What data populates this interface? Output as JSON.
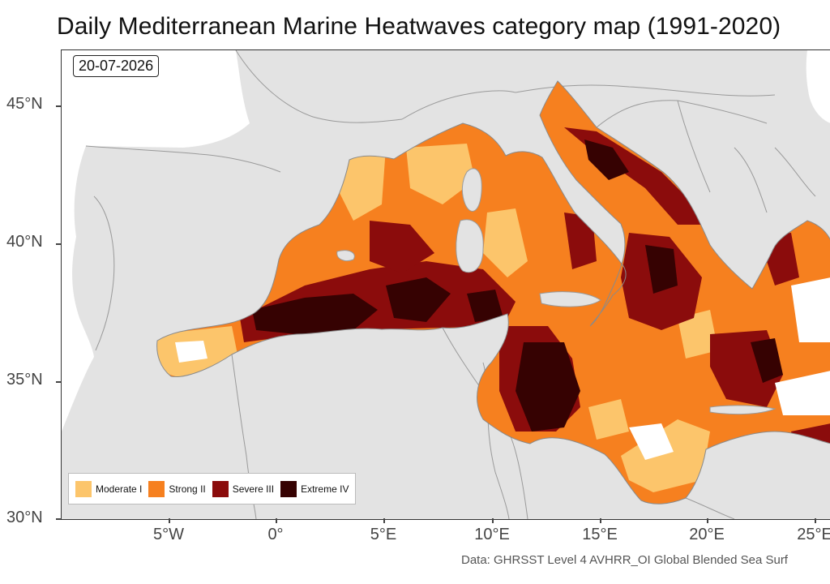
{
  "title": "Daily Mediterranean Marine Heatwaves category map (1991-2020)",
  "date_label": "20-07-2026",
  "caption": "Data: GHRSST Level 4 AVHRR_OI Global Blended Sea Surf",
  "colors": {
    "ocean": "#ffffff",
    "land": "#e3e3e3",
    "border": "#9a9a9a",
    "moderate": "#fcc56b",
    "strong": "#f6801f",
    "severe": "#8b0c0c",
    "extreme": "#360202"
  },
  "legend": [
    {
      "label": "Moderate I",
      "color": "#fcc56b"
    },
    {
      "label": "Strong II",
      "color": "#f6801f"
    },
    {
      "label": "Severe III",
      "color": "#8b0c0c"
    },
    {
      "label": "Extreme IV",
      "color": "#360202"
    }
  ],
  "y_ticks": [
    {
      "value": 45,
      "label": "45°N"
    },
    {
      "value": 40,
      "label": "40°N"
    },
    {
      "value": 35,
      "label": "35°N"
    },
    {
      "value": 30,
      "label": "30°N"
    }
  ],
  "x_ticks": [
    {
      "value": -5,
      "label": "5°W"
    },
    {
      "value": 0,
      "label": "0°"
    },
    {
      "value": 5,
      "label": "5°E"
    },
    {
      "value": 10,
      "label": "10°E"
    },
    {
      "value": 15,
      "label": "15°E"
    },
    {
      "value": 20,
      "label": "20°E"
    },
    {
      "value": 25,
      "label": "25°E"
    }
  ],
  "axis_ranges": {
    "lon": [
      -9.9,
      26.0
    ],
    "lat": [
      30.0,
      47.0
    ]
  }
}
